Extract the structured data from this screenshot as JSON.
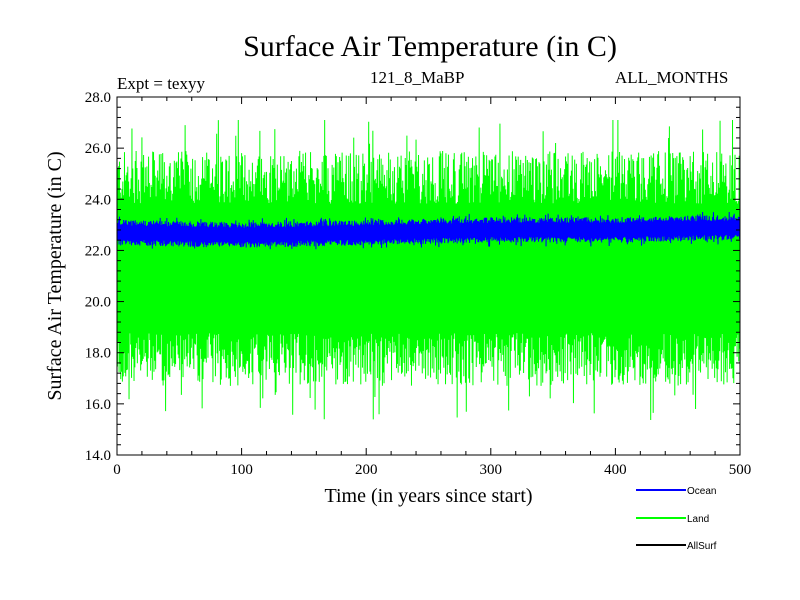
{
  "header": {
    "title": "Surface Air Temperature (in C)",
    "experiment": "Expt = texyy",
    "period": "121_8_MaBP",
    "months": "ALL_MONTHS"
  },
  "colors": {
    "ocean": "#0000ff",
    "land": "#00ff00",
    "allsurf": "#000000"
  },
  "chart_data": {
    "type": "line",
    "title": "Surface Air Temperature (in C)",
    "xlabel": "Time (in years since start)",
    "ylabel": "Surface Air Temperature (in C)",
    "xlim": [
      0,
      500
    ],
    "ylim": [
      14.0,
      28.0
    ],
    "x_ticks": [
      0,
      100,
      200,
      300,
      400,
      500
    ],
    "x_tick_labels": [
      "0",
      "100",
      "200",
      "300",
      "400",
      "500"
    ],
    "y_ticks": [
      14,
      16,
      18,
      20,
      22,
      24,
      26,
      28
    ],
    "y_tick_labels": [
      "14.0",
      "16.0",
      "18.0",
      "20.0",
      "22.0",
      "24.0",
      "26.0",
      "28.0"
    ],
    "grid": false,
    "legend_position": "bottom-right",
    "series": [
      {
        "name": "Ocean",
        "color": "#0000ff",
        "mean": 22.75,
        "approx_min": 22.0,
        "approx_max": 23.5,
        "trend_points": {
          "x": [
            0,
            100,
            200,
            300,
            400,
            500
          ],
          "y": [
            22.7,
            22.6,
            22.7,
            22.8,
            22.8,
            22.9
          ]
        }
      },
      {
        "name": "Land",
        "color": "#00ff00",
        "mean": 21.3,
        "approx_min": 15.3,
        "approx_max": 27.1,
        "trend_points": {
          "x": [
            0,
            100,
            200,
            300,
            400,
            500
          ],
          "y": [
            21.3,
            21.3,
            21.3,
            21.3,
            21.3,
            21.3
          ]
        }
      },
      {
        "name": "AllSurf",
        "color": "#000000"
      }
    ]
  }
}
